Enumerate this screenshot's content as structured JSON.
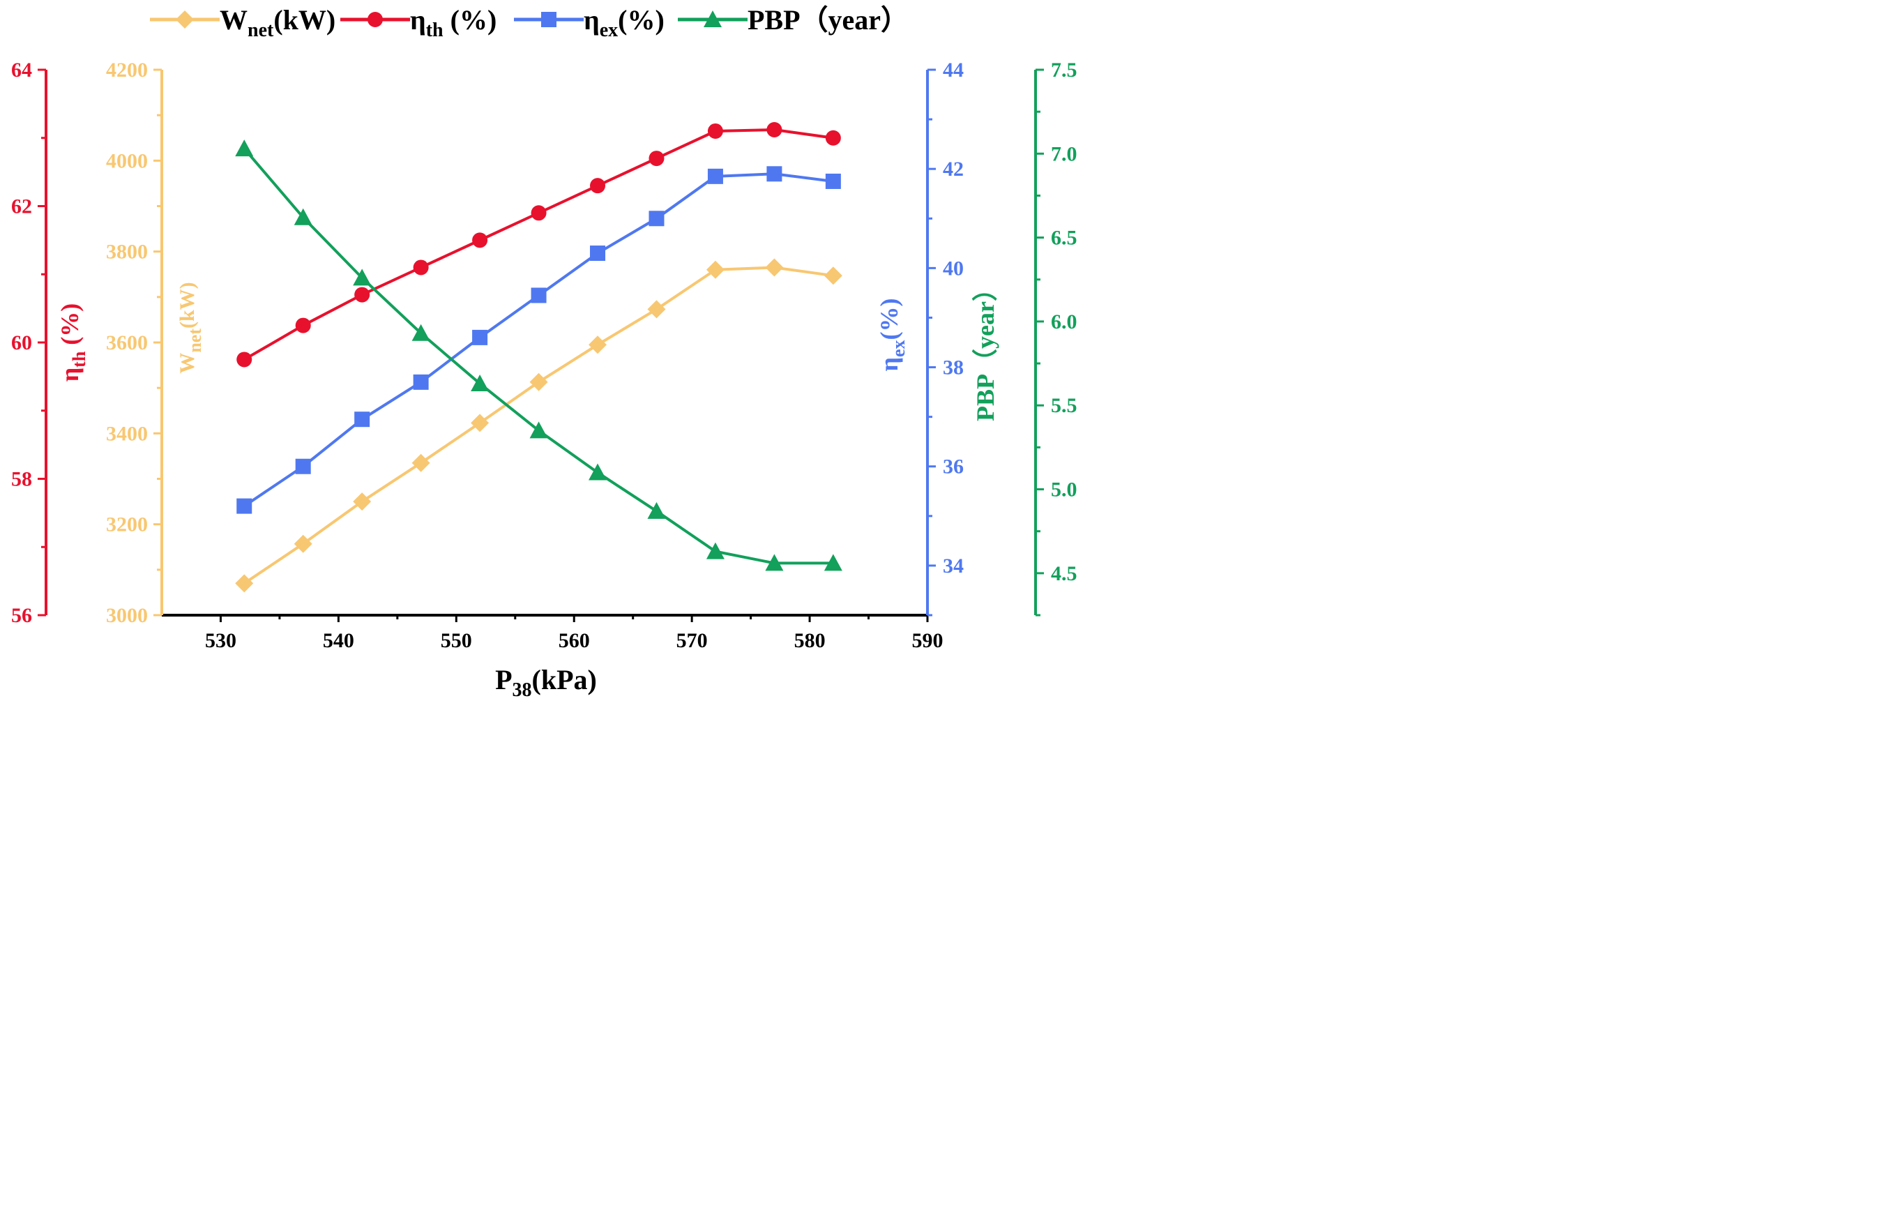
{
  "chart_data": {
    "type": "line",
    "xlabel": "P38(kPa)",
    "xlabel_main": "P",
    "xlabel_sub": "38",
    "xlabel_unit": "(kPa)",
    "xlim": [
      525,
      590
    ],
    "xticks": [
      530,
      540,
      550,
      560,
      570,
      580,
      590
    ],
    "x": [
      532,
      537,
      542,
      547,
      552,
      557,
      562,
      567,
      572,
      577,
      582
    ],
    "axes": [
      {
        "key": "eta_th",
        "side": "left-outer",
        "color": "#E8112D",
        "label_main": "η",
        "label_sub": "th",
        "label_unit": " (%)",
        "ylim": [
          56,
          64
        ],
        "ticks": [
          56,
          58,
          60,
          62,
          64
        ]
      },
      {
        "key": "wnet",
        "side": "left-inner",
        "color": "#F8C771",
        "label_main": "W",
        "label_sub": "net",
        "label_unit": "(kW)",
        "ylim": [
          3000,
          4200
        ],
        "ticks": [
          3000,
          3200,
          3400,
          3600,
          3800,
          4000,
          4200
        ]
      },
      {
        "key": "eta_ex",
        "side": "right-inner",
        "color": "#4F78F0",
        "label_main": "η",
        "label_sub": "ex",
        "label_unit": "(%)",
        "ylim": [
          33,
          44
        ],
        "ticks": [
          34,
          36,
          38,
          40,
          42,
          44
        ]
      },
      {
        "key": "pbp",
        "side": "right-outer",
        "color": "#12A05B",
        "label_main": "PBP（year）",
        "label_sub": "",
        "label_unit": "",
        "ylim": [
          4.25,
          7.5
        ],
        "ticks": [
          "4.5",
          "5.0",
          "5.5",
          "6.0",
          "6.5",
          "7.0",
          "7.5"
        ]
      }
    ],
    "series": [
      {
        "name": "Wnet(kW)",
        "legend_main": "W",
        "legend_sub": "net",
        "legend_unit": "(kW)",
        "axis": "wnet",
        "color": "#F8C771",
        "marker": "diamond",
        "values": [
          3070,
          3157,
          3250,
          3335,
          3423,
          3513,
          3595,
          3673,
          3760,
          3765,
          3747
        ]
      },
      {
        "name": "ηth (%)",
        "legend_main": "η",
        "legend_sub": "th",
        "legend_unit": " (%)",
        "axis": "eta_th",
        "color": "#E8112D",
        "marker": "circle",
        "values": [
          59.75,
          60.25,
          60.7,
          61.1,
          61.5,
          61.9,
          62.3,
          62.7,
          63.1,
          63.12,
          63.0
        ]
      },
      {
        "name": "ηex(%)",
        "legend_main": "η",
        "legend_sub": "ex",
        "legend_unit": "(%)",
        "axis": "eta_ex",
        "color": "#4F78F0",
        "marker": "square",
        "values": [
          35.2,
          36.0,
          36.95,
          37.7,
          38.6,
          39.45,
          40.3,
          41.0,
          41.85,
          41.9,
          41.75
        ]
      },
      {
        "name": "PBP（year）",
        "legend_main": "PBP（year）",
        "legend_sub": "",
        "legend_unit": "",
        "axis": "pbp",
        "color": "#12A05B",
        "marker": "triangle",
        "values": [
          7.03,
          6.62,
          6.26,
          5.93,
          5.63,
          5.35,
          5.1,
          4.87,
          4.63,
          4.56,
          4.56
        ]
      }
    ],
    "grid": false,
    "legend": "top"
  }
}
